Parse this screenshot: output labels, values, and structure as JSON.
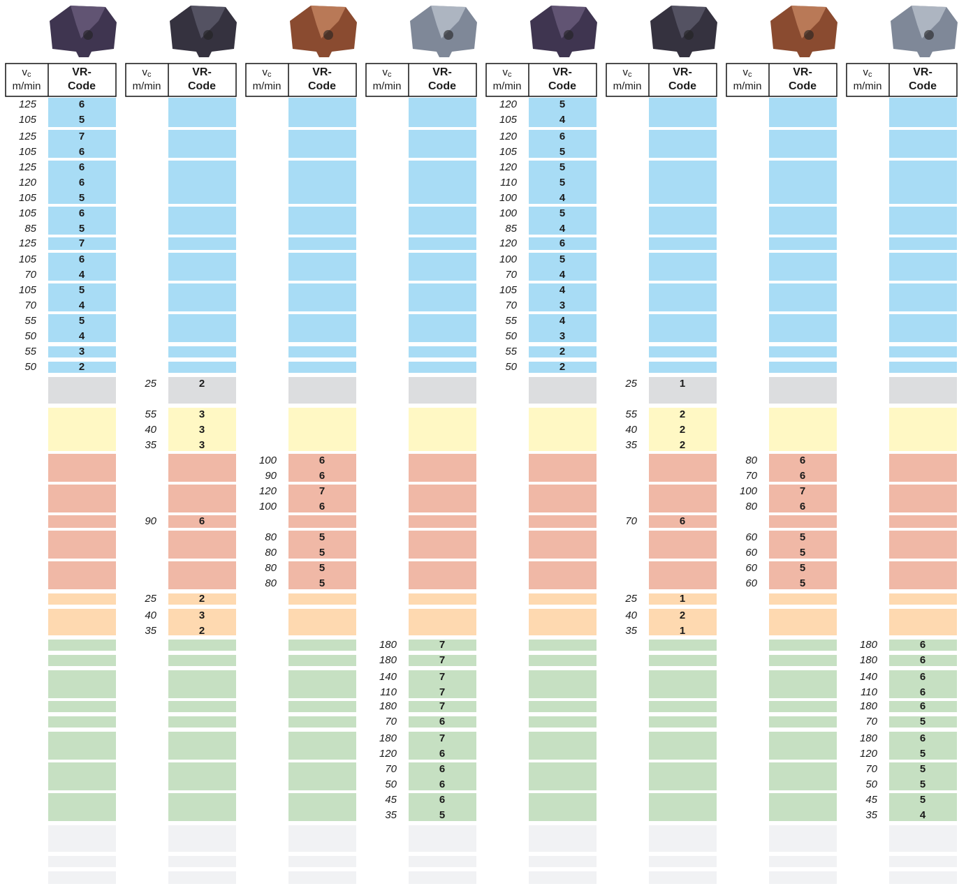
{
  "header": {
    "vc": "v",
    "vc_sub": "c",
    "unit": "m/min",
    "code_1": "VR-",
    "code_2": "Code"
  },
  "columns": [
    {
      "rows": [
        [
          [
            125,
            6
          ],
          [
            105,
            5
          ]
        ],
        [
          [
            125,
            7
          ],
          [
            105,
            6
          ]
        ],
        [
          [
            125,
            6
          ],
          [
            120,
            6
          ],
          [
            105,
            5
          ]
        ],
        [
          [
            105,
            6
          ],
          [
            85,
            5
          ]
        ],
        [
          [
            125,
            7
          ]
        ],
        [
          [
            105,
            6
          ],
          [
            70,
            4
          ]
        ],
        [
          [
            105,
            5
          ],
          [
            70,
            4
          ]
        ],
        [
          [
            55,
            5
          ],
          [
            50,
            4
          ]
        ],
        [
          [
            55,
            3
          ]
        ],
        [
          [
            50,
            2
          ]
        ],
        [],
        [],
        [],
        [],
        [],
        [],
        [],
        [],
        [],
        [],
        [],
        [],
        [],
        [],
        [],
        [],
        [],
        [],
        [],
        []
      ]
    },
    {
      "rows": [
        [],
        [],
        [],
        [],
        [],
        [],
        [],
        [],
        [],
        [],
        [
          [
            25,
            2
          ]
        ],
        [
          [
            55,
            3
          ],
          [
            40,
            3
          ],
          [
            35,
            3
          ]
        ],
        [],
        [],
        [
          [
            90,
            6
          ]
        ],
        [],
        [],
        [
          [
            25,
            2
          ]
        ],
        [
          [
            40,
            3
          ],
          [
            35,
            2
          ]
        ],
        [],
        [],
        [],
        [],
        [],
        [],
        [],
        [],
        [],
        [],
        []
      ]
    },
    {
      "rows": [
        [],
        [],
        [],
        [],
        [],
        [],
        [],
        [],
        [],
        [],
        [],
        [],
        [
          [
            100,
            6
          ],
          [
            90,
            6
          ]
        ],
        [
          [
            120,
            7
          ],
          [
            100,
            6
          ]
        ],
        [],
        [
          [
            80,
            5
          ],
          [
            80,
            5
          ]
        ],
        [
          [
            80,
            5
          ],
          [
            80,
            5
          ]
        ],
        [],
        [],
        [],
        [],
        [],
        [],
        [],
        [],
        [],
        [],
        [],
        [],
        []
      ]
    },
    {
      "rows": [
        [],
        [],
        [],
        [],
        [],
        [],
        [],
        [],
        [],
        [],
        [],
        [],
        [],
        [],
        [],
        [],
        [],
        [],
        [],
        [
          [
            180,
            7
          ]
        ],
        [
          [
            180,
            7
          ]
        ],
        [
          [
            140,
            7
          ],
          [
            110,
            7
          ]
        ],
        [
          [
            180,
            7
          ]
        ],
        [
          [
            70,
            6
          ]
        ],
        [
          [
            180,
            7
          ],
          [
            120,
            6
          ]
        ],
        [
          [
            70,
            6
          ],
          [
            50,
            6
          ]
        ],
        [
          [
            45,
            6
          ],
          [
            35,
            5
          ]
        ],
        [],
        [],
        []
      ]
    },
    {
      "rows": [
        [
          [
            120,
            5
          ],
          [
            105,
            4
          ]
        ],
        [
          [
            120,
            6
          ],
          [
            105,
            5
          ]
        ],
        [
          [
            120,
            5
          ],
          [
            110,
            5
          ],
          [
            100,
            4
          ]
        ],
        [
          [
            100,
            5
          ],
          [
            85,
            4
          ]
        ],
        [
          [
            120,
            6
          ]
        ],
        [
          [
            100,
            5
          ],
          [
            70,
            4
          ]
        ],
        [
          [
            105,
            4
          ],
          [
            70,
            3
          ]
        ],
        [
          [
            55,
            4
          ],
          [
            50,
            3
          ]
        ],
        [
          [
            55,
            2
          ]
        ],
        [
          [
            50,
            2
          ]
        ],
        [],
        [],
        [],
        [],
        [],
        [],
        [],
        [],
        [],
        [],
        [],
        [],
        [],
        [],
        [],
        [],
        [],
        [],
        [],
        []
      ]
    },
    {
      "rows": [
        [],
        [],
        [],
        [],
        [],
        [],
        [],
        [],
        [],
        [],
        [
          [
            25,
            1
          ]
        ],
        [
          [
            55,
            2
          ],
          [
            40,
            2
          ],
          [
            35,
            2
          ]
        ],
        [],
        [],
        [
          [
            70,
            6
          ]
        ],
        [],
        [],
        [
          [
            25,
            1
          ]
        ],
        [
          [
            40,
            2
          ],
          [
            35,
            1
          ]
        ],
        [],
        [],
        [],
        [],
        [],
        [],
        [],
        [],
        [],
        [],
        []
      ]
    },
    {
      "rows": [
        [],
        [],
        [],
        [],
        [],
        [],
        [],
        [],
        [],
        [],
        [],
        [],
        [
          [
            80,
            6
          ],
          [
            70,
            6
          ]
        ],
        [
          [
            100,
            7
          ],
          [
            80,
            6
          ]
        ],
        [],
        [
          [
            60,
            5
          ],
          [
            60,
            5
          ]
        ],
        [
          [
            60,
            5
          ],
          [
            60,
            5
          ]
        ],
        [],
        [],
        [],
        [],
        [],
        [],
        [],
        [],
        [],
        [],
        [],
        [],
        []
      ]
    },
    {
      "rows": [
        [],
        [],
        [],
        [],
        [],
        [],
        [],
        [],
        [],
        [],
        [],
        [],
        [],
        [],
        [],
        [],
        [],
        [],
        [],
        [
          [
            180,
            6
          ]
        ],
        [
          [
            180,
            6
          ]
        ],
        [
          [
            140,
            6
          ],
          [
            110,
            6
          ]
        ],
        [
          [
            180,
            6
          ]
        ],
        [
          [
            70,
            5
          ]
        ],
        [
          [
            180,
            6
          ],
          [
            120,
            5
          ]
        ],
        [
          [
            70,
            5
          ],
          [
            50,
            5
          ]
        ],
        [
          [
            45,
            5
          ],
          [
            35,
            4
          ]
        ],
        [],
        [],
        []
      ]
    }
  ]
}
